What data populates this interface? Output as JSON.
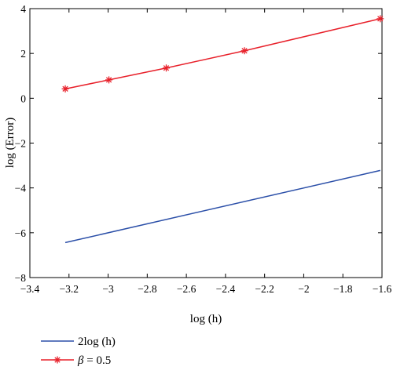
{
  "chart_data": {
    "type": "line",
    "title": "",
    "xlabel": "log (h)",
    "ylabel": "log (Error)",
    "xlim": [
      -3.4,
      -1.6
    ],
    "ylim": [
      -8,
      4
    ],
    "xticks": [
      -3.4,
      -3.2,
      -3,
      -2.8,
      -2.6,
      -2.4,
      -2.2,
      -2,
      -1.8,
      -1.6
    ],
    "yticks": [
      -8,
      -6,
      -4,
      -2,
      0,
      2,
      4
    ],
    "xtick_labels": [
      "−3.4",
      "−3.2",
      "−3",
      "−2.8",
      "−2.6",
      "−2.4",
      "−2.2",
      "−2",
      "−1.8",
      "−1.6"
    ],
    "ytick_labels": [
      "−8",
      "−6",
      "−4",
      "−2",
      "0",
      "2",
      "4"
    ],
    "grid": false,
    "legend_position": "below",
    "series": [
      {
        "name": "2log (h)",
        "color": "#2b4fa8",
        "marker": "none",
        "x": [
          -3.219,
          -1.609
        ],
        "y": [
          -6.44,
          -3.22
        ]
      },
      {
        "name": "β = 0.5",
        "color": "#e8202a",
        "marker": "asterisk",
        "x": [
          -3.219,
          -2.996,
          -2.703,
          -2.303,
          -1.609
        ],
        "y": [
          0.42,
          0.82,
          1.35,
          2.12,
          3.55
        ]
      }
    ]
  },
  "legend": {
    "items": [
      {
        "label": "2log (h)"
      },
      {
        "label_prefix": "β",
        "label_suffix": " = 0.5"
      }
    ]
  }
}
